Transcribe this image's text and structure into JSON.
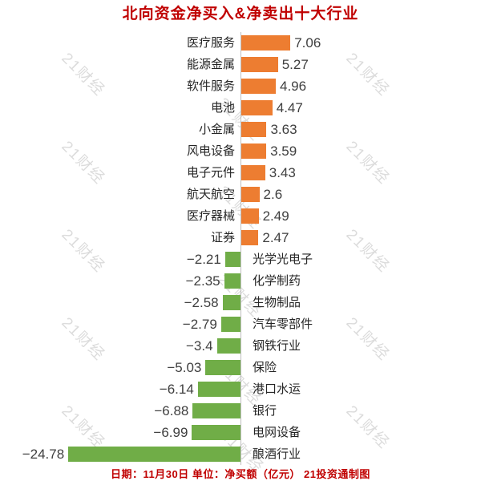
{
  "title": "北向资金净买入&净卖出十大行业",
  "footer": "日期：11月30日 单位：净买额（亿元） 21投资通制图",
  "footnote": {
    "date_label": "日期：11月30日",
    "unit_label": "单位：净买额（亿元）",
    "source_label": "21投资通制图"
  },
  "watermark_text": "21财经",
  "colors": {
    "positive_bar": "#ED7D31",
    "negative_bar": "#70AD47",
    "title_text": "#C00000",
    "footer_text": "#C00000",
    "category_label": "#262626",
    "value_label": "#3F3F3F",
    "zero_line": "#BFBFBF",
    "watermark": "#DCDCDC",
    "background": "#FFFFFF"
  },
  "chart_data": {
    "type": "bar",
    "orientation": "horizontal",
    "title": "北向资金净买入&净卖出十大行业",
    "xlabel": "净买额（亿元）",
    "ylabel": "",
    "xlim": [
      -24.78,
      7.06
    ],
    "grid": false,
    "legend": null,
    "zero_axis_line": true,
    "categories": [
      "医疗服务",
      "能源金属",
      "软件服务",
      "电池",
      "小金属",
      "风电设备",
      "电子元件",
      "航天航空",
      "医疗器械",
      "证券",
      "光学光电子",
      "化学制药",
      "生物制品",
      "汽车零部件",
      "钢铁行业",
      "保险",
      "港口水运",
      "银行",
      "电网设备",
      "酿酒行业"
    ],
    "values": [
      7.06,
      5.27,
      4.96,
      4.47,
      3.63,
      3.59,
      3.43,
      2.6,
      2.49,
      2.47,
      -2.21,
      -2.35,
      -2.58,
      -2.79,
      -3.4,
      -5.03,
      -6.14,
      -6.88,
      -6.99,
      -24.78
    ],
    "value_labels": [
      "7.06",
      "5.27",
      "4.96",
      "4.47",
      "3.63",
      "3.59",
      "3.43",
      "2.6",
      "2.49",
      "2.47",
      "−2.21",
      "−2.35",
      "−2.58",
      "−2.79",
      "−3.4",
      "−5.03",
      "−6.14",
      "−6.88",
      "−6.99",
      "−24.78"
    ]
  }
}
